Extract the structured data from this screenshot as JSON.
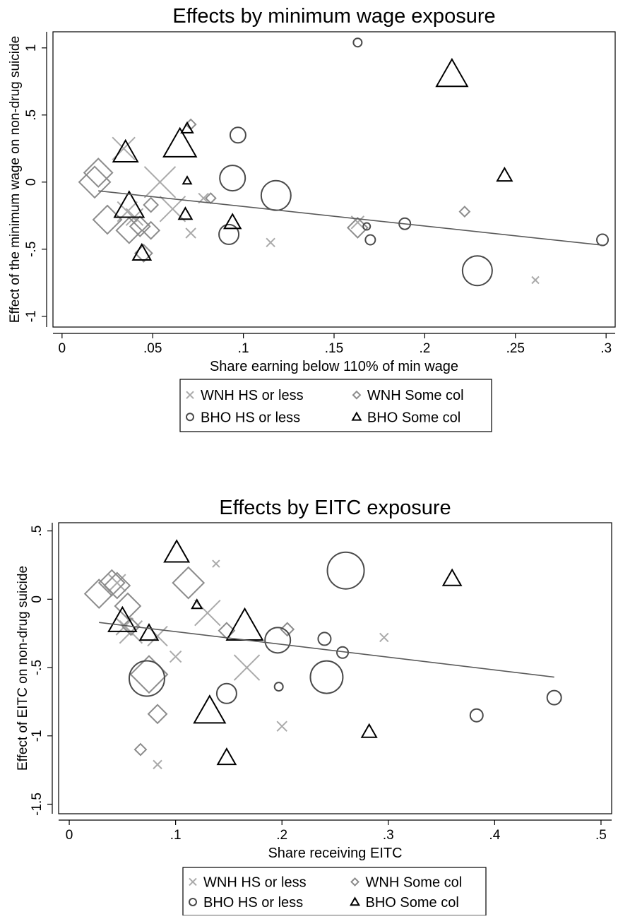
{
  "chart_data": [
    {
      "type": "scatter",
      "title": "Effects by minimum wage exposure",
      "xlabel": "Share earning below 110% of min wage",
      "ylabel": "Effect of the minimum wage on non-drug suicide",
      "xlim": [
        -0.005,
        0.305
      ],
      "ylim": [
        -1.08,
        1.12
      ],
      "xticks": [
        0,
        0.05,
        0.1,
        0.15,
        0.2,
        0.25,
        0.3
      ],
      "xtick_labels": [
        "0",
        ".05",
        ".1",
        ".15",
        ".2",
        ".25",
        ".3"
      ],
      "yticks": [
        -1,
        -0.5,
        0,
        0.5,
        1
      ],
      "ytick_labels": [
        "-1",
        "-.5",
        "0",
        ".5",
        "1"
      ],
      "grid": false,
      "legend_position": "bottom",
      "legend": [
        "WNH HS or less",
        "WNH Some col",
        "BHO HS or less",
        "BHO Some col"
      ],
      "fit_line": {
        "x": [
          0.02,
          0.298
        ],
        "y": [
          -0.065,
          -0.47
        ]
      },
      "series": [
        {
          "name": "WNH HS or less",
          "marker": "x",
          "points": [
            {
              "x": 0.034,
              "y": 0.25,
              "w": 16
            },
            {
              "x": 0.036,
              "y": -0.22,
              "w": 14
            },
            {
              "x": 0.04,
              "y": -0.26,
              "w": 12
            },
            {
              "x": 0.054,
              "y": 0.0,
              "w": 22
            },
            {
              "x": 0.061,
              "y": -0.2,
              "w": 18
            },
            {
              "x": 0.071,
              "y": -0.38,
              "w": 7
            },
            {
              "x": 0.078,
              "y": -0.12,
              "w": 7
            },
            {
              "x": 0.115,
              "y": -0.45,
              "w": 6
            },
            {
              "x": 0.163,
              "y": -0.3,
              "w": 9
            },
            {
              "x": 0.261,
              "y": -0.73,
              "w": 5
            }
          ]
        },
        {
          "name": "WNH Some col",
          "marker": "diamond",
          "points": [
            {
              "x": 0.018,
              "y": 0.0,
              "w": 22
            },
            {
              "x": 0.02,
              "y": 0.07,
              "w": 20
            },
            {
              "x": 0.025,
              "y": -0.28,
              "w": 20
            },
            {
              "x": 0.037,
              "y": -0.36,
              "w": 18
            },
            {
              "x": 0.043,
              "y": -0.33,
              "w": 14
            },
            {
              "x": 0.045,
              "y": -0.53,
              "w": 12
            },
            {
              "x": 0.049,
              "y": -0.17,
              "w": 10
            },
            {
              "x": 0.049,
              "y": -0.36,
              "w": 12
            },
            {
              "x": 0.071,
              "y": 0.43,
              "w": 7
            },
            {
              "x": 0.082,
              "y": -0.12,
              "w": 7
            },
            {
              "x": 0.163,
              "y": -0.34,
              "w": 14
            },
            {
              "x": 0.222,
              "y": -0.22,
              "w": 7
            }
          ]
        },
        {
          "name": "BHO HS or less",
          "marker": "circle",
          "points": [
            {
              "x": 0.092,
              "y": -0.39,
              "w": 14
            },
            {
              "x": 0.094,
              "y": 0.03,
              "w": 18
            },
            {
              "x": 0.097,
              "y": 0.35,
              "w": 11
            },
            {
              "x": 0.118,
              "y": -0.1,
              "w": 21
            },
            {
              "x": 0.163,
              "y": 1.04,
              "w": 6
            },
            {
              "x": 0.168,
              "y": -0.33,
              "w": 5
            },
            {
              "x": 0.17,
              "y": -0.43,
              "w": 7
            },
            {
              "x": 0.189,
              "y": -0.31,
              "w": 8
            },
            {
              "x": 0.229,
              "y": -0.66,
              "w": 21
            },
            {
              "x": 0.298,
              "y": -0.43,
              "w": 8
            }
          ]
        },
        {
          "name": "BHO Some col",
          "marker": "triangle",
          "points": [
            {
              "x": 0.035,
              "y": 0.22,
              "w": 15
            },
            {
              "x": 0.037,
              "y": -0.18,
              "w": 18
            },
            {
              "x": 0.044,
              "y": -0.53,
              "w": 11
            },
            {
              "x": 0.065,
              "y": 0.28,
              "w": 20
            },
            {
              "x": 0.069,
              "y": 0.01,
              "w": 5
            },
            {
              "x": 0.068,
              "y": -0.24,
              "w": 8
            },
            {
              "x": 0.069,
              "y": 0.4,
              "w": 7
            },
            {
              "x": 0.094,
              "y": -0.3,
              "w": 10
            },
            {
              "x": 0.215,
              "y": 0.8,
              "w": 19
            },
            {
              "x": 0.244,
              "y": 0.05,
              "w": 9
            }
          ]
        }
      ]
    },
    {
      "type": "scatter",
      "title": "Effects by EITC exposure",
      "xlabel": "Share receiving EITC",
      "ylabel": "Effect of EITC on non-drug suicide",
      "xlim": [
        -0.01,
        0.51
      ],
      "ylim": [
        -1.57,
        0.56
      ],
      "xticks": [
        0,
        0.1,
        0.2,
        0.3,
        0.4,
        0.5
      ],
      "xtick_labels": [
        "0",
        ".1",
        ".2",
        ".3",
        ".4",
        ".5"
      ],
      "yticks": [
        -1.5,
        -1,
        -0.5,
        0,
        0.5
      ],
      "ytick_labels": [
        "-1.5",
        "-1",
        "-.5",
        "0",
        ".5"
      ],
      "grid": false,
      "legend_position": "bottom",
      "legend": [
        "WNH HS or less",
        "WNH Some col",
        "BHO HS or less",
        "BHO Some col"
      ],
      "fit_line": {
        "x": [
          0.028,
          0.456
        ],
        "y": [
          -0.17,
          -0.57
        ]
      },
      "series": [
        {
          "name": "WNH HS or less",
          "marker": "x",
          "points": [
            {
              "x": 0.045,
              "y": 0.12,
              "w": 12
            },
            {
              "x": 0.052,
              "y": -0.2,
              "w": 12
            },
            {
              "x": 0.058,
              "y": -0.24,
              "w": 16
            },
            {
              "x": 0.083,
              "y": -0.27,
              "w": 14
            },
            {
              "x": 0.1,
              "y": -0.42,
              "w": 8
            },
            {
              "x": 0.083,
              "y": -1.21,
              "w": 6
            },
            {
              "x": 0.13,
              "y": -0.1,
              "w": 18
            },
            {
              "x": 0.138,
              "y": 0.26,
              "w": 5
            },
            {
              "x": 0.167,
              "y": -0.5,
              "w": 18
            },
            {
              "x": 0.2,
              "y": -0.93,
              "w": 7
            },
            {
              "x": 0.296,
              "y": -0.28,
              "w": 6
            }
          ]
        },
        {
          "name": "WNH Some col",
          "marker": "diamond",
          "points": [
            {
              "x": 0.028,
              "y": 0.04,
              "w": 20
            },
            {
              "x": 0.04,
              "y": 0.12,
              "w": 18
            },
            {
              "x": 0.045,
              "y": 0.1,
              "w": 18
            },
            {
              "x": 0.055,
              "y": -0.05,
              "w": 18
            },
            {
              "x": 0.058,
              "y": -0.2,
              "w": 12
            },
            {
              "x": 0.075,
              "y": -0.55,
              "w": 26
            },
            {
              "x": 0.067,
              "y": -1.1,
              "w": 8
            },
            {
              "x": 0.083,
              "y": -0.84,
              "w": 13
            },
            {
              "x": 0.112,
              "y": 0.12,
              "w": 22
            },
            {
              "x": 0.148,
              "y": -0.23,
              "w": 11
            },
            {
              "x": 0.205,
              "y": -0.22,
              "w": 9
            }
          ]
        },
        {
          "name": "BHO HS or less",
          "marker": "circle",
          "points": [
            {
              "x": 0.073,
              "y": -0.58,
              "w": 25
            },
            {
              "x": 0.148,
              "y": -0.69,
              "w": 14
            },
            {
              "x": 0.196,
              "y": -0.3,
              "w": 18
            },
            {
              "x": 0.197,
              "y": -0.64,
              "w": 6
            },
            {
              "x": 0.24,
              "y": -0.29,
              "w": 9
            },
            {
              "x": 0.242,
              "y": -0.57,
              "w": 23
            },
            {
              "x": 0.26,
              "y": 0.21,
              "w": 26
            },
            {
              "x": 0.257,
              "y": -0.39,
              "w": 8
            },
            {
              "x": 0.383,
              "y": -0.85,
              "w": 9
            },
            {
              "x": 0.456,
              "y": -0.72,
              "w": 10
            }
          ]
        },
        {
          "name": "BHO Some col",
          "marker": "triangle",
          "points": [
            {
              "x": 0.05,
              "y": -0.16,
              "w": 17
            },
            {
              "x": 0.075,
              "y": -0.25,
              "w": 11
            },
            {
              "x": 0.101,
              "y": 0.34,
              "w": 15
            },
            {
              "x": 0.12,
              "y": -0.04,
              "w": 6
            },
            {
              "x": 0.132,
              "y": -0.82,
              "w": 19
            },
            {
              "x": 0.148,
              "y": -1.16,
              "w": 11
            },
            {
              "x": 0.165,
              "y": -0.2,
              "w": 22
            },
            {
              "x": 0.282,
              "y": -0.97,
              "w": 9
            },
            {
              "x": 0.36,
              "y": 0.15,
              "w": 11
            }
          ]
        }
      ]
    }
  ]
}
